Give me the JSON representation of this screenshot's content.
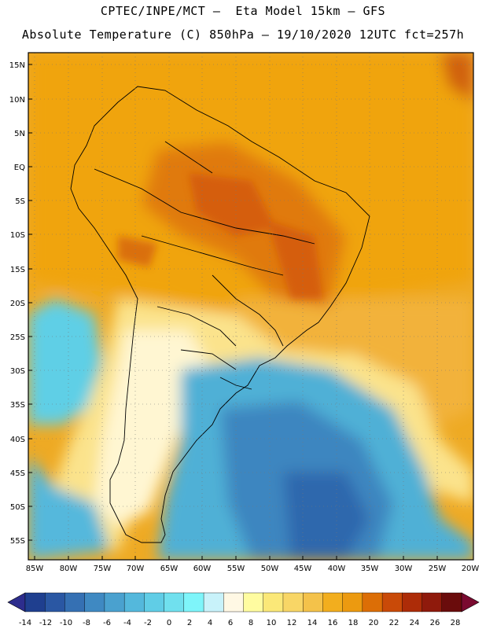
{
  "header": {
    "line1": "CPTEC/INPE/MCT –  Eta Model 15km – GFS",
    "line2": "Absolute Temperature (C) 850hPa – 19/10/2020 12UTC fct=257h"
  },
  "lat_labels": [
    "15N",
    "10N",
    "5N",
    "EQ",
    "5S",
    "10S",
    "15S",
    "20S",
    "25S",
    "30S",
    "35S",
    "40S",
    "45S",
    "50S",
    "55S"
  ],
  "lon_labels": [
    "85W",
    "80W",
    "75W",
    "70W",
    "65W",
    "60W",
    "55W",
    "50W",
    "45W",
    "40W",
    "35W",
    "30W",
    "25W",
    "20W"
  ],
  "colorbar": {
    "labels": [
      "-14",
      "-12",
      "-10",
      "-8",
      "-6",
      "-4",
      "-2",
      "0",
      "2",
      "4",
      "6",
      "8",
      "10",
      "12",
      "14",
      "16",
      "18",
      "20",
      "22",
      "24",
      "26",
      "28"
    ],
    "colors": [
      "#1f3f8f",
      "#2a57a3",
      "#3570b3",
      "#3f89c2",
      "#4aa1cf",
      "#54b8dc",
      "#60cde6",
      "#70e0ee",
      "#7ef5fa",
      "#c8f2fa",
      "#fff8e4",
      "#fffca0",
      "#fbe878",
      "#f8d666",
      "#f4c24a",
      "#f2ae1e",
      "#ec9a10",
      "#dc6e06",
      "#c94a08",
      "#ad2c08",
      "#8f1a0c",
      "#6a0c0c"
    ],
    "under_color": "#2d2d8d",
    "over_color": "#7a0a30"
  }
}
